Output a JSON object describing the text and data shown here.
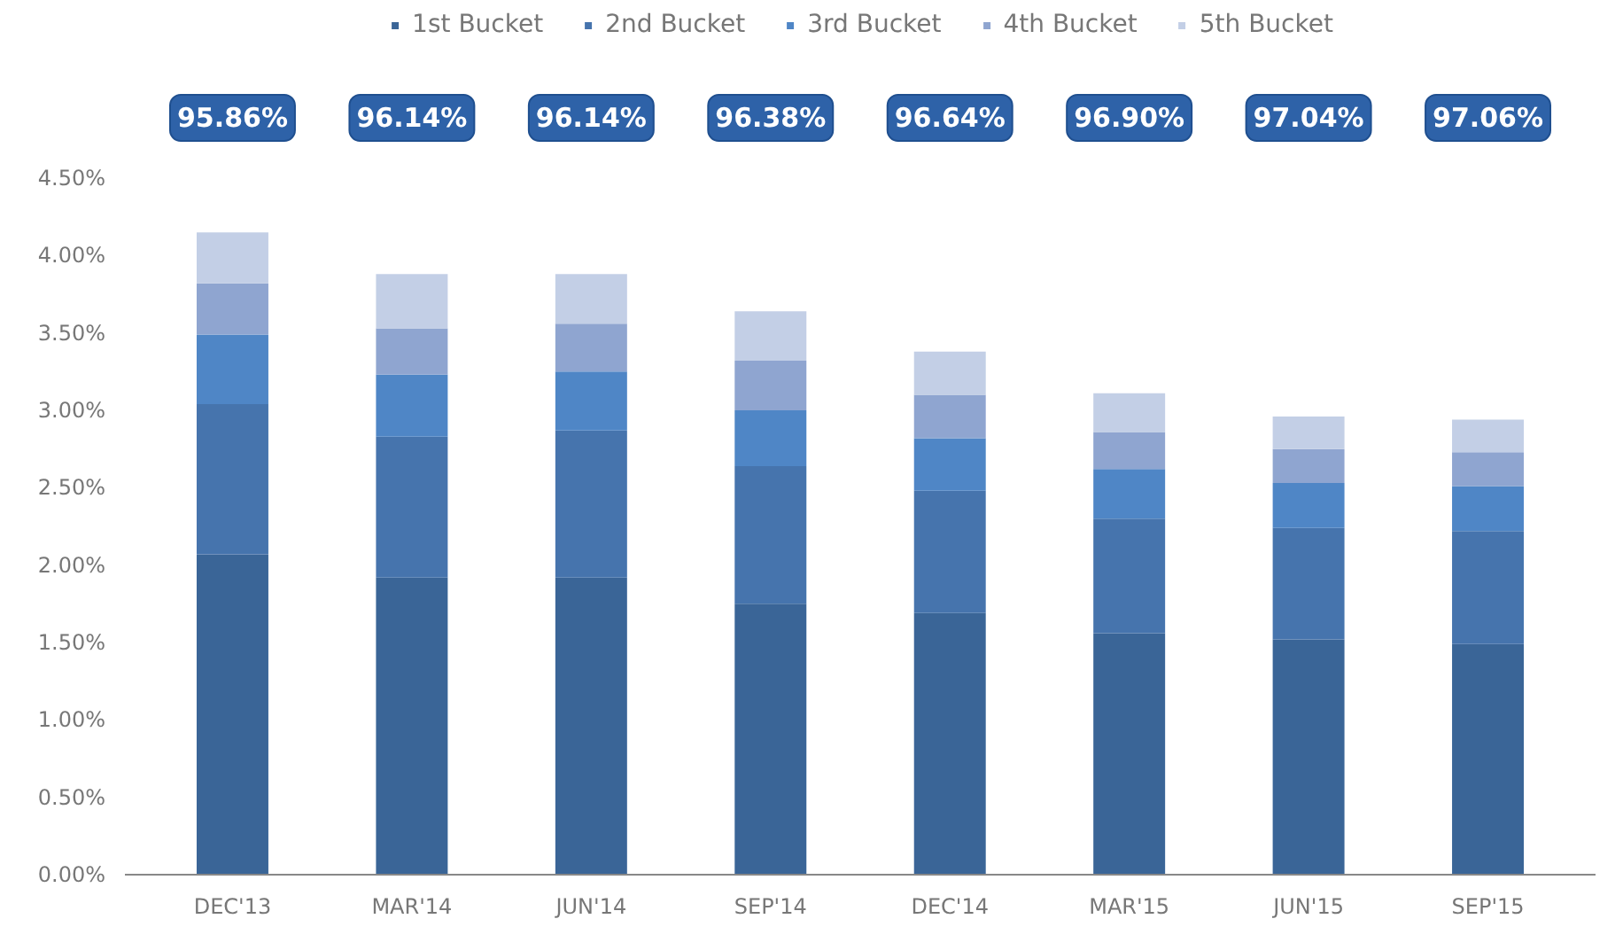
{
  "chart_data": {
    "type": "bar",
    "stacked": true,
    "legend": "top",
    "grid": false,
    "categories": [
      "DEC'13",
      "MAR'14",
      "JUN'14",
      "SEP'14",
      "DEC'14",
      "MAR'15",
      "JUN'15",
      "SEP'15"
    ],
    "series": [
      {
        "name": "1st Bucket",
        "color": "#3a6597",
        "values": [
          2.07,
          1.92,
          1.92,
          1.75,
          1.69,
          1.56,
          1.52,
          1.49
        ]
      },
      {
        "name": "2nd Bucket",
        "color": "#4674ad",
        "values": [
          0.97,
          0.91,
          0.95,
          0.89,
          0.79,
          0.74,
          0.72,
          0.73
        ]
      },
      {
        "name": "3rd Bucket",
        "color": "#4f86c6",
        "values": [
          0.45,
          0.4,
          0.38,
          0.36,
          0.34,
          0.32,
          0.29,
          0.29
        ]
      },
      {
        "name": "4th Bucket",
        "color": "#8fa5d0",
        "values": [
          0.33,
          0.3,
          0.31,
          0.32,
          0.28,
          0.24,
          0.22,
          0.22
        ]
      },
      {
        "name": "5th Bucket",
        "color": "#c3cfe6",
        "values": [
          0.33,
          0.35,
          0.32,
          0.32,
          0.28,
          0.25,
          0.21,
          0.21
        ]
      }
    ],
    "ylim": [
      0,
      4.5
    ],
    "yticks": [
      {
        "value": 0,
        "label": "0.00%"
      },
      {
        "value": 0.5,
        "label": "0.50%"
      },
      {
        "value": 1,
        "label": "1.00%"
      },
      {
        "value": 1.5,
        "label": "1.50%"
      },
      {
        "value": 2,
        "label": "2.00%"
      },
      {
        "value": 2.5,
        "label": "2.50%"
      },
      {
        "value": 3,
        "label": "3.00%"
      },
      {
        "value": 3.5,
        "label": "3.50%"
      },
      {
        "value": 4,
        "label": "4.00%"
      },
      {
        "value": 4.5,
        "label": "4.50%"
      }
    ],
    "annotations": [
      "95.86%",
      "96.14%",
      "96.14%",
      "96.38%",
      "96.64%",
      "96.90%",
      "97.04%",
      "97.06%"
    ]
  }
}
